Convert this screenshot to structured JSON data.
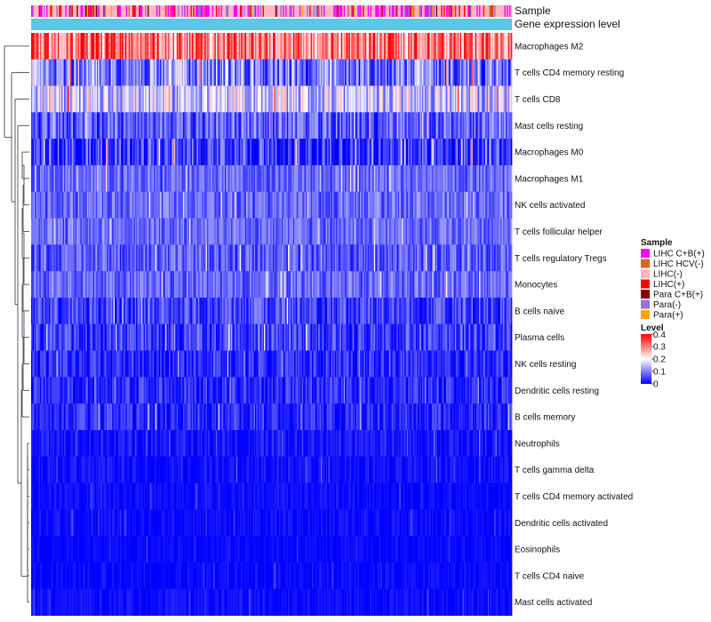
{
  "chart_data": {
    "type": "heatmap",
    "annotation_tracks": [
      {
        "name": "Sample"
      },
      {
        "name": "Gene expression level"
      }
    ],
    "rows": [
      {
        "label": "Macrophages M2",
        "mean": 0.3,
        "spread": 0.12
      },
      {
        "label": "T cells CD4 memory resting",
        "mean": 0.1,
        "spread": 0.1
      },
      {
        "label": "T cells CD8",
        "mean": 0.16,
        "spread": 0.1
      },
      {
        "label": "Mast cells resting",
        "mean": 0.07,
        "spread": 0.07
      },
      {
        "label": "Macrophages M0",
        "mean": 0.04,
        "spread": 0.08
      },
      {
        "label": "Macrophages M1",
        "mean": 0.08,
        "spread": 0.05
      },
      {
        "label": "NK cells activated",
        "mean": 0.08,
        "spread": 0.05
      },
      {
        "label": "T cells follicular helper",
        "mean": 0.08,
        "spread": 0.05
      },
      {
        "label": "T cells regulatory  Tregs",
        "mean": 0.07,
        "spread": 0.06
      },
      {
        "label": "Monocytes",
        "mean": 0.08,
        "spread": 0.05
      },
      {
        "label": "B cells naive",
        "mean": 0.05,
        "spread": 0.06
      },
      {
        "label": "Plasma cells",
        "mean": 0.05,
        "spread": 0.06
      },
      {
        "label": "NK cells resting",
        "mean": 0.03,
        "spread": 0.05
      },
      {
        "label": "Dendritic cells resting",
        "mean": 0.03,
        "spread": 0.05
      },
      {
        "label": "B cells memory",
        "mean": 0.03,
        "spread": 0.05
      },
      {
        "label": "Neutrophils",
        "mean": 0.015,
        "spread": 0.03
      },
      {
        "label": "T cells gamma delta",
        "mean": 0.01,
        "spread": 0.025
      },
      {
        "label": "T cells CD4 memory activated",
        "mean": 0.008,
        "spread": 0.02
      },
      {
        "label": "Dendritic cells activated",
        "mean": 0.008,
        "spread": 0.02
      },
      {
        "label": "Eosinophils",
        "mean": 0.005,
        "spread": 0.015
      },
      {
        "label": "T cells CD4 naive",
        "mean": 0.005,
        "spread": 0.02
      },
      {
        "label": "Mast cells activated",
        "mean": 0.008,
        "spread": 0.02
      }
    ],
    "n_columns": 380,
    "sample_legend": {
      "title": "Sample",
      "entries": [
        {
          "label": "LIHC C+B(+)",
          "color": "#ff00ff",
          "weight": 0.22
        },
        {
          "label": "LIHC HCV(-)",
          "color": "#d2691e",
          "weight": 0.03
        },
        {
          "label": "LIHC(-)",
          "color": "#ffb6c1",
          "weight": 0.48
        },
        {
          "label": "LIHC(+)",
          "color": "#ff0000",
          "weight": 0.12
        },
        {
          "label": "Para C+B(+)",
          "color": "#8b0000",
          "weight": 0.02
        },
        {
          "label": "Para(-)",
          "color": "#9370db",
          "weight": 0.09
        },
        {
          "label": "Para(+)",
          "color": "#ffa500",
          "weight": 0.04
        }
      ]
    },
    "gene_expression_color": "#5bc8e8",
    "level_legend": {
      "title": "Level",
      "ticks": [
        "0.4",
        "0.3",
        "0.2",
        "0.1",
        "0"
      ],
      "range": [
        0,
        0.4
      ],
      "colors": [
        "#0000ff",
        "#ffffff",
        "#ff0000"
      ]
    }
  }
}
